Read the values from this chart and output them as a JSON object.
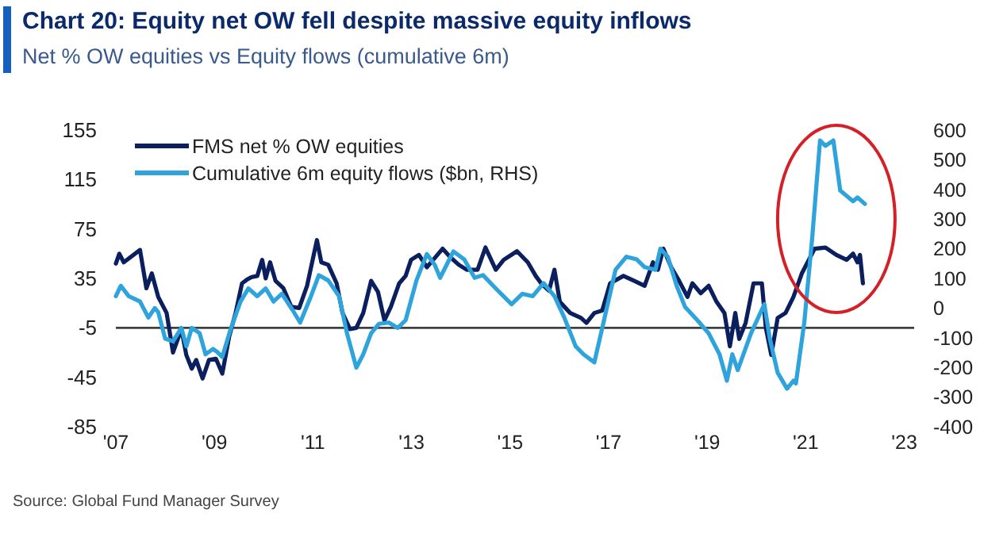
{
  "chart_data": {
    "type": "line",
    "title": "Chart 20: Equity net OW fell despite massive equity inflows",
    "subtitle": "Net % OW equities vs Equity flows (cumulative 6m)",
    "annotations": [
      "Source: Global Fund Manager Survey"
    ],
    "xlim": [
      2007,
      2023.2
    ],
    "xticks": [
      {
        "value": 2007,
        "label": "'07"
      },
      {
        "value": 2009,
        "label": "'09"
      },
      {
        "value": 2011,
        "label": "'11"
      },
      {
        "value": 2013,
        "label": "'13"
      },
      {
        "value": 2015,
        "label": "'15"
      },
      {
        "value": 2017,
        "label": "'17"
      },
      {
        "value": 2019,
        "label": "'19"
      },
      {
        "value": 2021,
        "label": "'21"
      },
      {
        "value": 2023,
        "label": "'23"
      }
    ],
    "ylim": [
      -85,
      155
    ],
    "yticks": [
      -85,
      -45,
      -5,
      35,
      75,
      115,
      155
    ],
    "y2lim": [
      -400,
      600
    ],
    "y2ticks": [
      -400,
      -300,
      -200,
      -100,
      0,
      100,
      200,
      300,
      400,
      500,
      600
    ],
    "grid": false,
    "legend": "top left",
    "ref_lines": [
      {
        "axis": "y",
        "value": -5,
        "color": "#404040"
      }
    ],
    "series": [
      {
        "name": "FMS net % OW equities",
        "color": "#0b1f5e",
        "x": [
          2007.0,
          2007.07,
          2007.16,
          2007.49,
          2007.62,
          2007.73,
          2007.86,
          2008.03,
          2008.16,
          2008.33,
          2008.43,
          2008.54,
          2008.63,
          2008.76,
          2008.89,
          2009.03,
          2009.16,
          2009.3,
          2009.43,
          2009.56,
          2009.66,
          2009.75,
          2009.87,
          2009.97,
          2010.04,
          2010.13,
          2010.24,
          2010.4,
          2010.56,
          2010.72,
          2010.88,
          2011.08,
          2011.17,
          2011.31,
          2011.48,
          2011.6,
          2011.75,
          2011.88,
          2012.02,
          2012.18,
          2012.32,
          2012.45,
          2012.58,
          2012.75,
          2012.88,
          2012.99,
          2013.15,
          2013.31,
          2013.44,
          2013.63,
          2013.79,
          2013.96,
          2014.12,
          2014.34,
          2014.5,
          2014.71,
          2014.87,
          2015.14,
          2015.36,
          2015.52,
          2015.63,
          2015.79,
          2015.9,
          2016.01,
          2016.22,
          2016.44,
          2016.55,
          2016.71,
          2016.87,
          2017.03,
          2017.3,
          2017.52,
          2017.73,
          2017.9,
          2018.0,
          2018.11,
          2018.27,
          2018.43,
          2018.6,
          2018.7,
          2018.87,
          2019.03,
          2019.19,
          2019.35,
          2019.46,
          2019.57,
          2019.65,
          2019.78,
          2019.94,
          2020.11,
          2020.19,
          2020.3,
          2020.43,
          2020.59,
          2020.75,
          2020.92,
          2021.18,
          2021.4,
          2021.62,
          2021.83,
          2021.96,
          2022.05,
          2022.1,
          2022.16
        ],
        "values": [
          47,
          55,
          48,
          58,
          27,
          39,
          20,
          7,
          -25,
          -6,
          -27,
          -38,
          -31,
          -46,
          -31,
          -30,
          -42,
          -12,
          7,
          31,
          34,
          36,
          37,
          50,
          35,
          48,
          33,
          27,
          12,
          11,
          29,
          66,
          48,
          46,
          31,
          7,
          -6,
          -5,
          7,
          33,
          24,
          1,
          12,
          31,
          37,
          50,
          54,
          44,
          50,
          59,
          52,
          46,
          42,
          42,
          60,
          42,
          50,
          57,
          48,
          37,
          31,
          25,
          42,
          16,
          7,
          3,
          -1,
          7,
          9,
          31,
          37,
          33,
          29,
          48,
          42,
          59,
          44,
          33,
          20,
          31,
          23,
          29,
          16,
          7,
          -20,
          7,
          -14,
          -1,
          31,
          31,
          -5,
          -27,
          3,
          7,
          20,
          39,
          59,
          60,
          54,
          50,
          55,
          48,
          54,
          31
        ]
      },
      {
        "name": "Cumulative 6m equity flows ($bn, RHS)",
        "color": "#2ea3dc",
        "axis": "y2",
        "x": [
          2007.0,
          2007.1,
          2007.26,
          2007.49,
          2007.66,
          2007.79,
          2007.86,
          2008.0,
          2008.16,
          2008.33,
          2008.43,
          2008.54,
          2008.7,
          2008.82,
          2008.97,
          2009.05,
          2009.16,
          2009.32,
          2009.53,
          2009.69,
          2009.87,
          2010.04,
          2010.2,
          2010.37,
          2010.58,
          2010.74,
          2010.96,
          2011.12,
          2011.31,
          2011.53,
          2011.69,
          2011.88,
          2012.02,
          2012.18,
          2012.34,
          2012.54,
          2012.72,
          2012.88,
          2013.1,
          2013.31,
          2013.47,
          2013.58,
          2013.85,
          2014.07,
          2014.28,
          2014.45,
          2014.71,
          2015.03,
          2015.25,
          2015.46,
          2015.68,
          2015.9,
          2016.1,
          2016.33,
          2016.49,
          2016.71,
          2016.87,
          2017.14,
          2017.36,
          2017.57,
          2017.73,
          2017.95,
          2018.05,
          2018.2,
          2018.38,
          2018.55,
          2018.8,
          2019.03,
          2019.25,
          2019.4,
          2019.51,
          2019.62,
          2019.89,
          2020.16,
          2020.27,
          2020.43,
          2020.62,
          2020.75,
          2020.8,
          2020.97,
          2021.13,
          2021.29,
          2021.4,
          2021.56,
          2021.7,
          2021.83,
          2021.96,
          2022.05,
          2022.2
        ],
        "values": [
          40,
          75,
          40,
          22,
          -32,
          0,
          -14,
          -103,
          -112,
          -67,
          -129,
          -67,
          -85,
          -156,
          -138,
          -147,
          -165,
          -76,
          22,
          66,
          40,
          66,
          22,
          48,
          -5,
          -49,
          40,
          111,
          93,
          40,
          -85,
          -201,
          -156,
          -85,
          -53,
          -49,
          -67,
          -41,
          93,
          182,
          146,
          102,
          191,
          164,
          102,
          111,
          66,
          13,
          48,
          40,
          84,
          40,
          -32,
          -129,
          -156,
          -183,
          -67,
          129,
          173,
          164,
          138,
          129,
          200,
          173,
          75,
          4,
          -41,
          -85,
          -156,
          -245,
          -156,
          -209,
          -85,
          13,
          -103,
          -218,
          -272,
          -245,
          -254,
          -49,
          235,
          565,
          547,
          565,
          396,
          378,
          360,
          373,
          351
        ]
      }
    ]
  }
}
